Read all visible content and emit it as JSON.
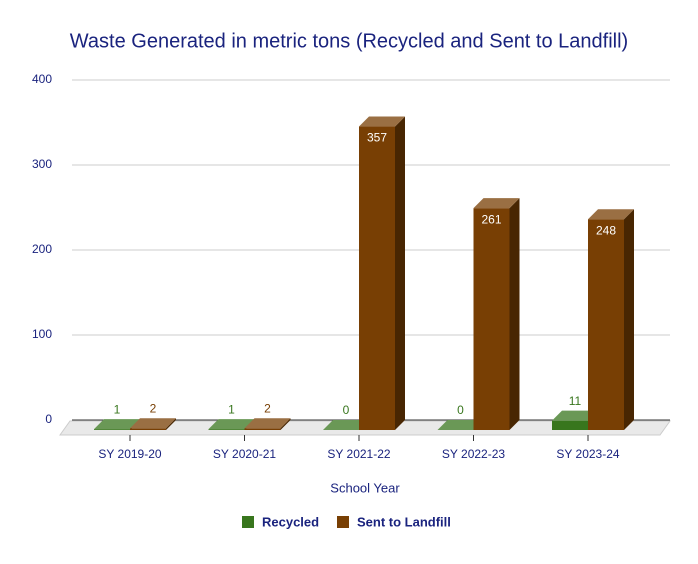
{
  "chart_data": {
    "type": "bar3d",
    "title": "Waste Generated in metric tons (Recycled and Sent to Landfill)",
    "x_label": "School Year",
    "categories": [
      "SY 2019-20",
      "SY 2020-21",
      "SY 2021-22",
      "SY 2022-23",
      "SY 2023-24"
    ],
    "series": [
      {
        "name": "Recycled",
        "color": "#38761d",
        "values": [
          1,
          1,
          0,
          0,
          11
        ]
      },
      {
        "name": "Sent to Landfill",
        "color": "#783f04",
        "values": [
          2,
          2,
          357,
          261,
          248
        ]
      }
    ],
    "ylim": [
      0,
      400
    ],
    "yticks": [
      0,
      100,
      200,
      300,
      400
    ],
    "grid": true,
    "legend": "bottom"
  }
}
